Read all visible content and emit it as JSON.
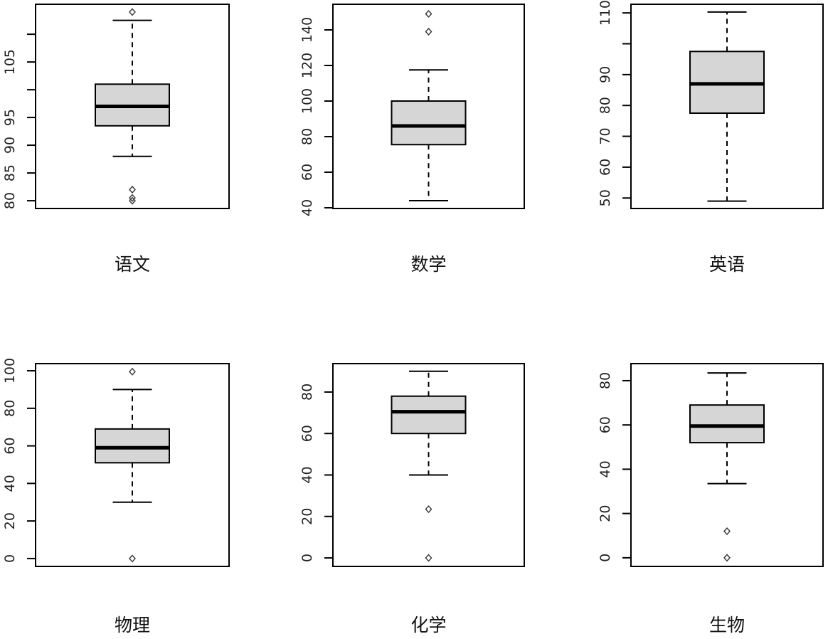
{
  "colors": {
    "box_fill": "#d6d6d6",
    "stroke": "#000000",
    "tick_label": "#1f1f1f",
    "title": "#111111",
    "background": "#ffffff"
  },
  "chart_data": [
    {
      "type": "boxplot",
      "title": "语文",
      "ylim": [
        78.6,
        115.4
      ],
      "ticks": [
        80,
        85,
        90,
        95,
        100,
        105,
        110
      ],
      "tick_labels": [
        "80",
        "85",
        "90",
        "95",
        "",
        "105",
        ""
      ],
      "stats": {
        "whisker_low": 88,
        "q1": 93.5,
        "median": 97,
        "q3": 101,
        "whisker_high": 112.5
      },
      "outliers": [
        114,
        82,
        80.5,
        80
      ]
    },
    {
      "type": "boxplot",
      "title": "数学",
      "ylim": [
        39.6,
        154.4
      ],
      "ticks": [
        40,
        60,
        80,
        100,
        120,
        140
      ],
      "tick_labels": [
        "40",
        "60",
        "80",
        "100",
        "120",
        "140"
      ],
      "stats": {
        "whisker_low": 44,
        "q1": 75.5,
        "median": 86,
        "q3": 100,
        "whisker_high": 117.5
      },
      "outliers": [
        149,
        139
      ]
    },
    {
      "type": "boxplot",
      "title": "英语",
      "ylim": [
        46.6,
        112.8
      ],
      "ticks": [
        50,
        60,
        70,
        80,
        90,
        100,
        110
      ],
      "tick_labels": [
        "50",
        "60",
        "70",
        "80",
        "90",
        "",
        "110"
      ],
      "stats": {
        "whisker_low": 49,
        "q1": 77.5,
        "median": 87,
        "q3": 97.5,
        "whisker_high": 110.3
      },
      "outliers": []
    },
    {
      "type": "boxplot",
      "title": "物理",
      "ylim": [
        -4.2,
        103.8
      ],
      "ticks": [
        0,
        20,
        40,
        60,
        80,
        100
      ],
      "tick_labels": [
        "0",
        "20",
        "40",
        "60",
        "80",
        "100"
      ],
      "stats": {
        "whisker_low": 30,
        "q1": 51,
        "median": 59,
        "q3": 69,
        "whisker_high": 90
      },
      "outliers": [
        99.5,
        0
      ]
    },
    {
      "type": "boxplot",
      "title": "化学",
      "ylim": [
        -4.1,
        93.7
      ],
      "ticks": [
        0,
        20,
        40,
        60,
        80
      ],
      "tick_labels": [
        "0",
        "20",
        "40",
        "60",
        "80"
      ],
      "stats": {
        "whisker_low": 40,
        "q1": 60,
        "median": 70.5,
        "q3": 78,
        "whisker_high": 90
      },
      "outliers": [
        23.5,
        0
      ]
    },
    {
      "type": "boxplot",
      "title": "生物",
      "ylim": [
        -3.9,
        87.7
      ],
      "ticks": [
        0,
        20,
        40,
        60,
        80
      ],
      "tick_labels": [
        "0",
        "20",
        "40",
        "60",
        "80"
      ],
      "stats": {
        "whisker_low": 33.5,
        "q1": 52,
        "median": 59.5,
        "q3": 69,
        "whisker_high": 83.5
      },
      "outliers": [
        12,
        0
      ]
    }
  ]
}
